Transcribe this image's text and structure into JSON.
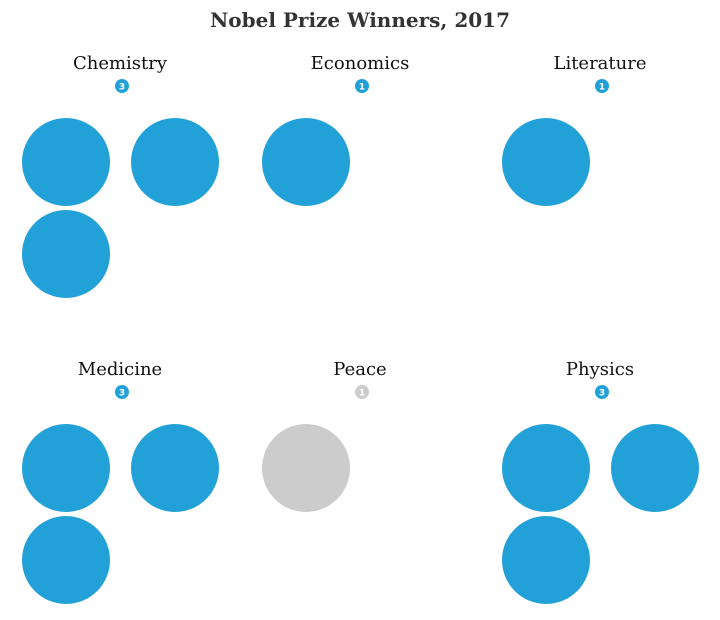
{
  "chart_data": {
    "type": "bubble-grid",
    "title": "Nobel Prize Winners, 2017",
    "categories": [
      {
        "name": "Chemistry",
        "count": 3,
        "color": "#22a1d9"
      },
      {
        "name": "Economics",
        "count": 1,
        "color": "#22a1d9"
      },
      {
        "name": "Literature",
        "count": 1,
        "color": "#22a1d9"
      },
      {
        "name": "Medicine",
        "count": 3,
        "color": "#22a1d9"
      },
      {
        "name": "Peace",
        "count": 1,
        "color": "#cccccc"
      },
      {
        "name": "Physics",
        "count": 3,
        "color": "#22a1d9"
      }
    ]
  }
}
